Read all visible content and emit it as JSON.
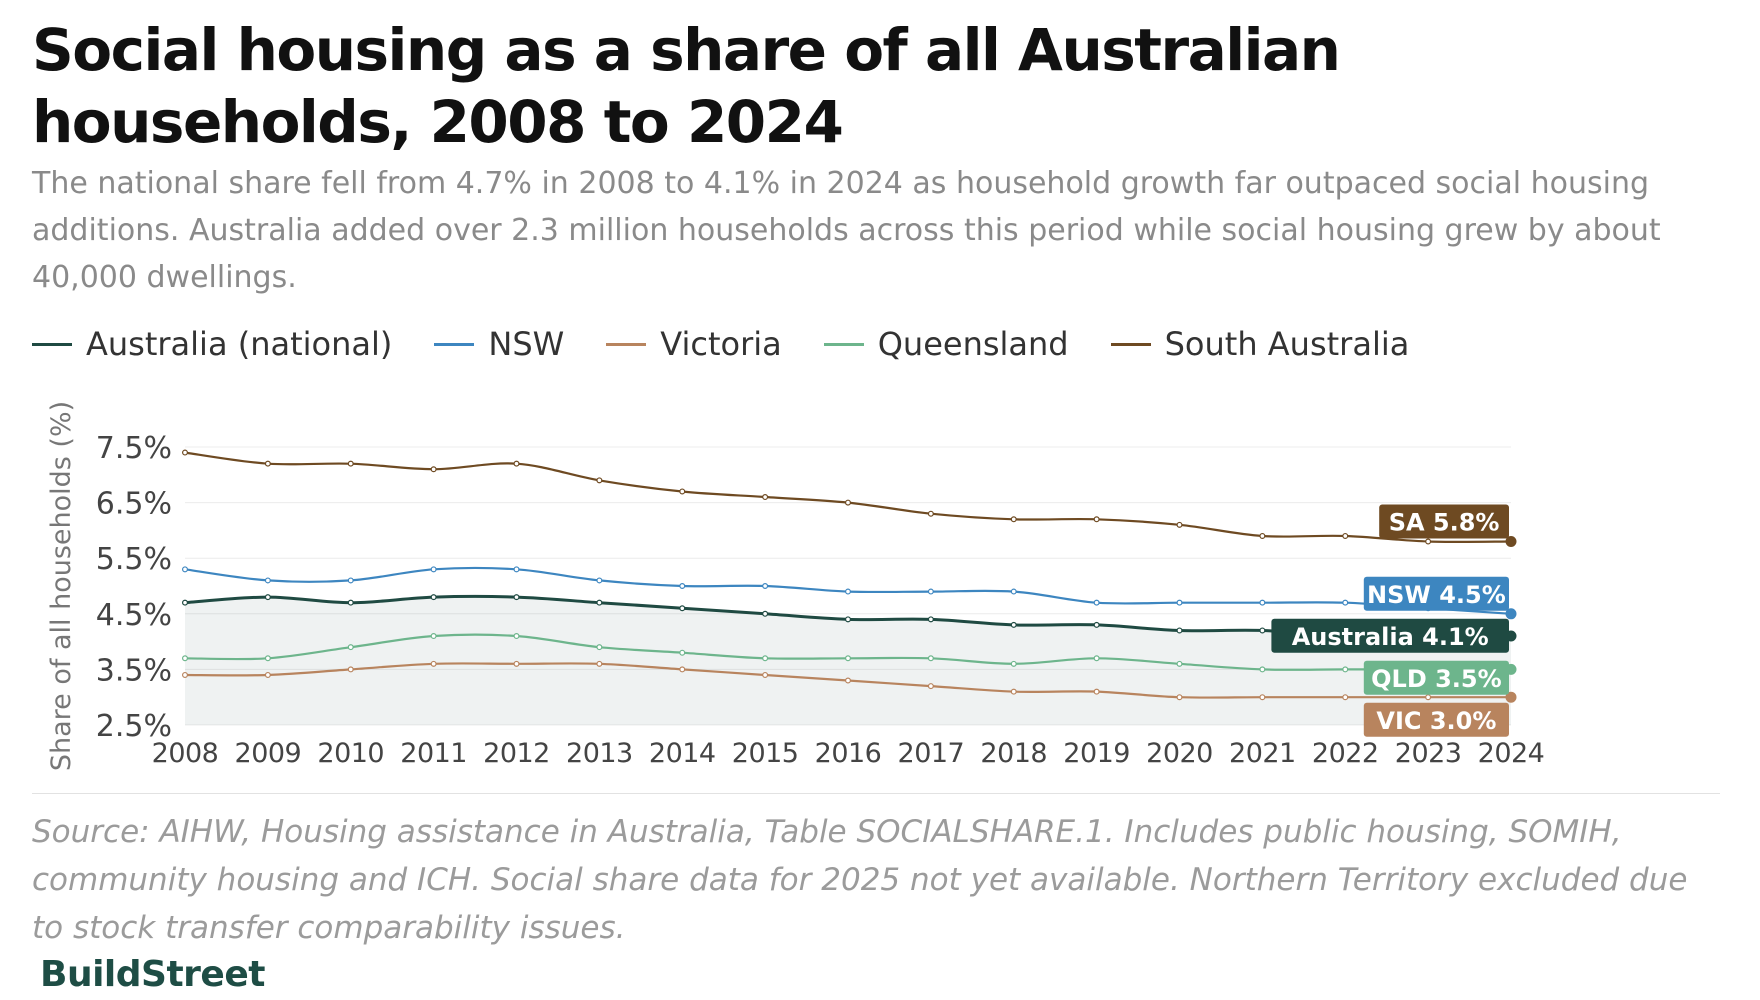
{
  "title": "Social housing as a share of all Australian households, 2008 to 2024",
  "subtitle": "The national share fell from 4.7% in 2008 to 4.1% in 2024 as household growth far outpaced social housing additions. Australia added over 2.3 million households across this period while social housing grew by about 40,000 dwellings.",
  "source": "Source: AIHW, Housing assistance in Australia, Table SOCIALSHARE.1. Includes public housing, SOMIH, community housing and ICH. Social share data for 2025 not yet available. Northern Territory excluded due to stock transfer comparability issues.",
  "brand": "BuildStreet",
  "brand_color": "#1e4d45",
  "chart_data": {
    "type": "line",
    "ylabel": "Share of all households (%)",
    "xlabel": "",
    "ylim": [
      2.5,
      7.5
    ],
    "y_ticks": [
      2.5,
      3.5,
      4.5,
      5.5,
      6.5,
      7.5
    ],
    "y_tick_labels": [
      "2.5%",
      "3.5%",
      "4.5%",
      "5.5%",
      "6.5%",
      "7.5%"
    ],
    "x": [
      "2008",
      "2009",
      "2010",
      "2011",
      "2012",
      "2013",
      "2014",
      "2015",
      "2016",
      "2017",
      "2018",
      "2019",
      "2020",
      "2021",
      "2022",
      "2023",
      "2024"
    ],
    "grid": true,
    "legend_position": "top-left",
    "series": [
      {
        "name": "Australia (national)",
        "color": "#1f4a42",
        "values": [
          4.7,
          4.8,
          4.7,
          4.8,
          4.8,
          4.7,
          4.6,
          4.5,
          4.4,
          4.4,
          4.3,
          4.3,
          4.2,
          4.2,
          4.1,
          4.1,
          4.1
        ],
        "end_label": "Australia 4.1%",
        "shaded": true
      },
      {
        "name": "NSW",
        "color": "#3d86c0",
        "values": [
          5.3,
          5.1,
          5.1,
          5.3,
          5.3,
          5.1,
          5.0,
          5.0,
          4.9,
          4.9,
          4.9,
          4.7,
          4.7,
          4.7,
          4.7,
          4.6,
          4.5
        ],
        "end_label": "NSW 4.5%"
      },
      {
        "name": "Victoria",
        "color": "#b8845e",
        "values": [
          3.4,
          3.4,
          3.5,
          3.6,
          3.6,
          3.6,
          3.5,
          3.4,
          3.3,
          3.2,
          3.1,
          3.1,
          3.0,
          3.0,
          3.0,
          3.0,
          3.0
        ],
        "end_label": "VIC 3.0%"
      },
      {
        "name": "Queensland",
        "color": "#6db58c",
        "values": [
          3.7,
          3.7,
          3.9,
          4.1,
          4.1,
          3.9,
          3.8,
          3.7,
          3.7,
          3.7,
          3.6,
          3.7,
          3.6,
          3.5,
          3.5,
          3.5,
          3.5
        ],
        "end_label": "QLD 3.5%"
      },
      {
        "name": "South Australia",
        "color": "#6e4a22",
        "values": [
          7.4,
          7.2,
          7.2,
          7.1,
          7.2,
          6.9,
          6.7,
          6.6,
          6.5,
          6.3,
          6.2,
          6.2,
          6.1,
          5.9,
          5.9,
          5.8,
          5.8
        ],
        "end_label": "SA 5.8%"
      }
    ]
  }
}
